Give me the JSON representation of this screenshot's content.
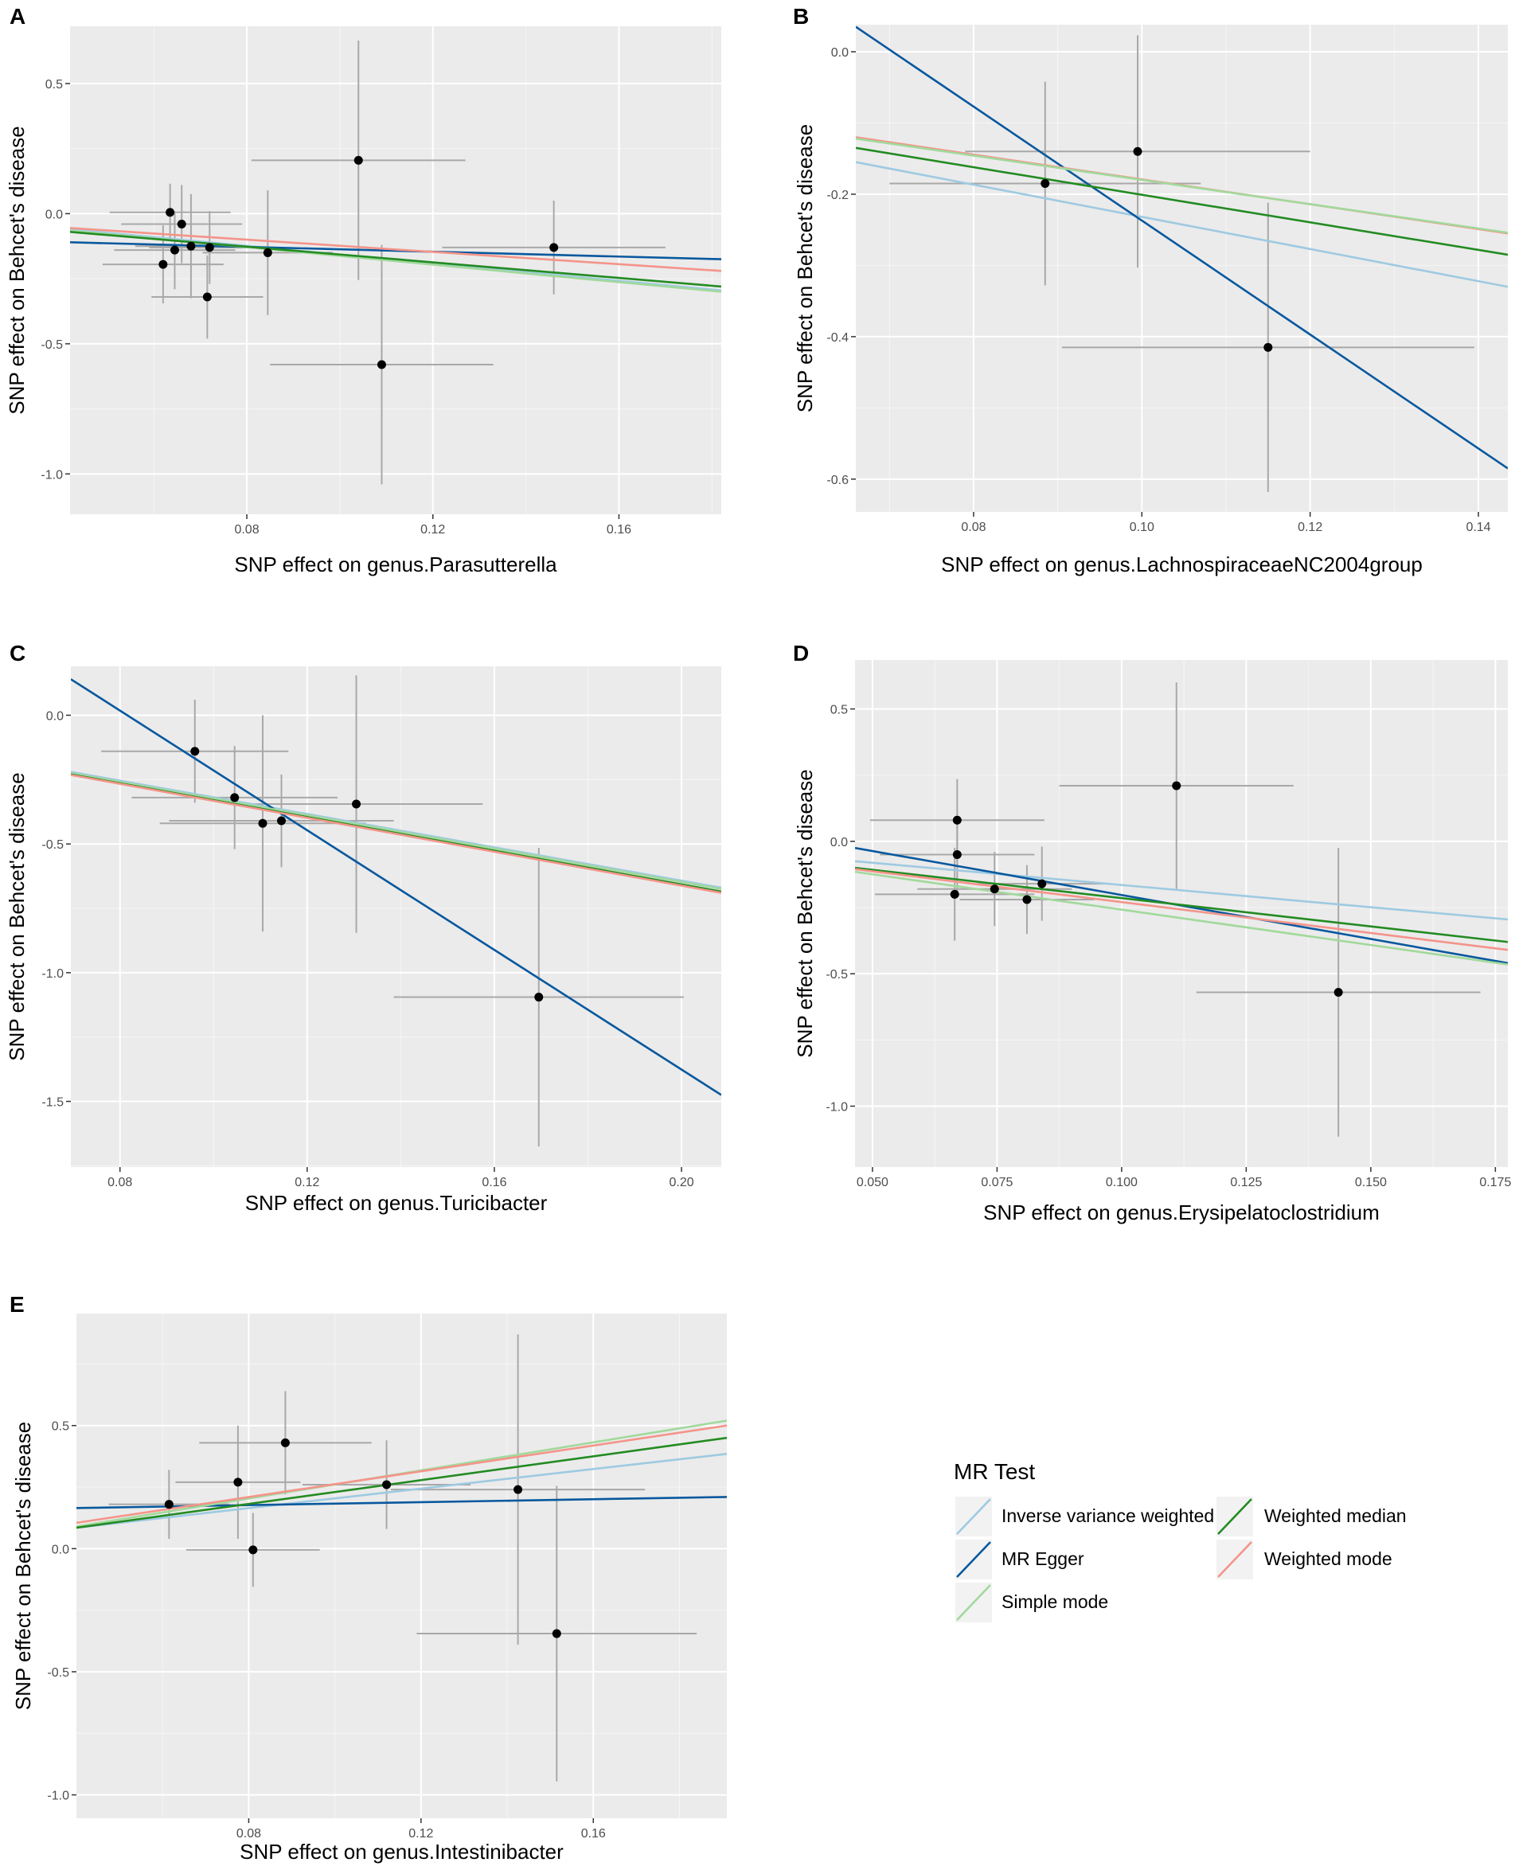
{
  "legend": {
    "title": "MR Test",
    "entries": [
      {
        "method": "ivw",
        "label": "Inverse variance weighted",
        "color": "#9ecae1"
      },
      {
        "method": "egger",
        "label": "MR Egger",
        "color": "#08589e"
      },
      {
        "method": "simple",
        "label": "Simple mode",
        "color": "#a1d99b"
      },
      {
        "method": "wmedian",
        "label": "Weighted median",
        "color": "#238b22"
      },
      {
        "method": "wmode",
        "label": "Weighted mode",
        "color": "#f4948a"
      }
    ]
  },
  "chart_data": [
    {
      "type": "scatter",
      "panel": "A",
      "title": "",
      "xlabel": "SNP effect on genus.Parasutterella",
      "ylabel": "SNP effect on Behcet's disease",
      "xlim": [
        0.042,
        0.182
      ],
      "ylim": [
        -1.155,
        0.72
      ],
      "xticks": [
        0.08,
        0.12,
        0.16
      ],
      "xtick_labels": [
        "0.08",
        "0.12",
        "0.16"
      ],
      "yticks": [
        0.5,
        0.0,
        -0.5,
        -1.0
      ],
      "ytick_labels": [
        "0.5",
        "0.0",
        "-0.5",
        "-1.0"
      ],
      "points": [
        {
          "x": 0.0635,
          "y": 0.005,
          "xerr": 0.013,
          "yerr": 0.11
        },
        {
          "x": 0.066,
          "y": -0.04,
          "xerr": 0.013,
          "yerr": 0.15
        },
        {
          "x": 0.068,
          "y": -0.125,
          "xerr": 0.012,
          "yerr": 0.2
        },
        {
          "x": 0.0645,
          "y": -0.14,
          "xerr": 0.013,
          "yerr": 0.15
        },
        {
          "x": 0.072,
          "y": -0.13,
          "xerr": 0.013,
          "yerr": 0.14
        },
        {
          "x": 0.062,
          "y": -0.195,
          "xerr": 0.013,
          "yerr": 0.15
        },
        {
          "x": 0.0715,
          "y": -0.32,
          "xerr": 0.012,
          "yerr": 0.16
        },
        {
          "x": 0.0845,
          "y": -0.15,
          "xerr": 0.014,
          "yerr": 0.24
        },
        {
          "x": 0.104,
          "y": 0.205,
          "xerr": 0.023,
          "yerr": 0.46
        },
        {
          "x": 0.109,
          "y": -0.58,
          "xerr": 0.024,
          "yerr": 0.46
        },
        {
          "x": 0.146,
          "y": -0.13,
          "xerr": 0.024,
          "yerr": 0.18
        }
      ],
      "lines": [
        {
          "method": "ivw",
          "y_at_xmin": -0.06,
          "y_at_xmax": -0.295
        },
        {
          "method": "egger",
          "y_at_xmin": -0.11,
          "y_at_xmax": -0.175
        },
        {
          "method": "simple",
          "y_at_xmin": -0.065,
          "y_at_xmax": -0.3
        },
        {
          "method": "wmedian",
          "y_at_xmin": -0.07,
          "y_at_xmax": -0.28
        },
        {
          "method": "wmode",
          "y_at_xmin": -0.055,
          "y_at_xmax": -0.22
        }
      ]
    },
    {
      "type": "scatter",
      "panel": "B",
      "title": "",
      "xlabel": "SNP effect on genus.LachnospiraceaeNC2004group",
      "ylabel": "SNP effect on Behcet's disease",
      "xlim": [
        0.066,
        0.1435
      ],
      "ylim": [
        -0.646,
        0.038
      ],
      "xticks": [
        0.08,
        0.1,
        0.12,
        0.14
      ],
      "xtick_labels": [
        "0.08",
        "0.10",
        "0.12",
        "0.14"
      ],
      "yticks": [
        0.0,
        -0.2,
        -0.4,
        -0.6
      ],
      "ytick_labels": [
        "0.0",
        "-0.2",
        "-0.4",
        "-0.6"
      ],
      "points": [
        {
          "x": 0.0885,
          "y": -0.185,
          "xerr": 0.0185,
          "yerr": 0.143
        },
        {
          "x": 0.0995,
          "y": -0.14,
          "xerr": 0.0205,
          "yerr": 0.163
        },
        {
          "x": 0.115,
          "y": -0.415,
          "xerr": 0.0245,
          "yerr": 0.203
        }
      ],
      "lines": [
        {
          "method": "ivw",
          "y_at_xmin": -0.155,
          "y_at_xmax": -0.33
        },
        {
          "method": "egger",
          "y_at_xmin": 0.035,
          "y_at_xmax": -0.585
        },
        {
          "method": "wmedian",
          "y_at_xmin": -0.135,
          "y_at_xmax": -0.285
        },
        {
          "method": "wmode",
          "y_at_xmin": -0.12,
          "y_at_xmax": -0.255
        },
        {
          "method": "simple",
          "y_at_xmin": -0.122,
          "y_at_xmax": -0.254
        }
      ]
    },
    {
      "type": "scatter",
      "panel": "C",
      "title": "",
      "xlabel": "SNP effect on genus.Turicibacter",
      "ylabel": "SNP effect on Behcet's disease",
      "xlim": [
        0.0695,
        0.2085
      ],
      "ylim": [
        -1.755,
        0.19
      ],
      "xticks": [
        0.08,
        0.12,
        0.16,
        0.2
      ],
      "xtick_labels": [
        "0.08",
        "0.12",
        "0.16",
        "0.20"
      ],
      "yticks": [
        0.0,
        -0.5,
        -1.0,
        -1.5
      ],
      "ytick_labels": [
        "0.0",
        "-0.5",
        "-1.0",
        "-1.5"
      ],
      "points": [
        {
          "x": 0.096,
          "y": -0.14,
          "xerr": 0.02,
          "yerr": 0.2
        },
        {
          "x": 0.1045,
          "y": -0.32,
          "xerr": 0.022,
          "yerr": 0.2
        },
        {
          "x": 0.1105,
          "y": -0.42,
          "xerr": 0.022,
          "yerr": 0.42
        },
        {
          "x": 0.1145,
          "y": -0.41,
          "xerr": 0.024,
          "yerr": 0.18
        },
        {
          "x": 0.1305,
          "y": -0.345,
          "xerr": 0.027,
          "yerr": 0.5
        },
        {
          "x": 0.1695,
          "y": -1.095,
          "xerr": 0.031,
          "yerr": 0.58
        }
      ],
      "lines": [
        {
          "method": "ivw",
          "y_at_xmin": -0.22,
          "y_at_xmax": -0.67
        },
        {
          "method": "egger",
          "y_at_xmin": 0.14,
          "y_at_xmax": -1.475
        },
        {
          "method": "simple",
          "y_at_xmin": -0.225,
          "y_at_xmax": -0.675
        },
        {
          "method": "wmedian",
          "y_at_xmin": -0.23,
          "y_at_xmax": -0.685
        },
        {
          "method": "wmode",
          "y_at_xmin": -0.232,
          "y_at_xmax": -0.69
        }
      ]
    },
    {
      "type": "scatter",
      "panel": "D",
      "title": "",
      "xlabel": "SNP effect on genus.Erysipelatoclostridium",
      "ylabel": "SNP effect on Behcet's disease",
      "xlim": [
        0.0465,
        0.1775
      ],
      "ylim": [
        -1.23,
        0.685
      ],
      "xticks": [
        0.05,
        0.075,
        0.1,
        0.125,
        0.15,
        0.175
      ],
      "xtick_labels": [
        "0.050",
        "0.075",
        "0.100",
        "0.125",
        "0.150",
        "0.175"
      ],
      "yticks": [
        0.5,
        0.0,
        -0.5,
        -1.0
      ],
      "ytick_labels": [
        "0.5",
        "0.0",
        "-0.5",
        "-1.0"
      ],
      "points": [
        {
          "x": 0.067,
          "y": 0.08,
          "xerr": 0.0175,
          "yerr": 0.155
        },
        {
          "x": 0.067,
          "y": -0.05,
          "xerr": 0.0155,
          "yerr": 0.155
        },
        {
          "x": 0.0665,
          "y": -0.2,
          "xerr": 0.016,
          "yerr": 0.175
        },
        {
          "x": 0.0745,
          "y": -0.18,
          "xerr": 0.0155,
          "yerr": 0.14
        },
        {
          "x": 0.081,
          "y": -0.22,
          "xerr": 0.0135,
          "yerr": 0.13
        },
        {
          "x": 0.084,
          "y": -0.16,
          "xerr": 0.013,
          "yerr": 0.14
        },
        {
          "x": 0.111,
          "y": 0.21,
          "xerr": 0.0235,
          "yerr": 0.39
        },
        {
          "x": 0.1435,
          "y": -0.57,
          "xerr": 0.0285,
          "yerr": 0.545
        }
      ],
      "lines": [
        {
          "method": "ivw",
          "y_at_xmin": -0.075,
          "y_at_xmax": -0.295
        },
        {
          "method": "egger",
          "y_at_xmin": -0.025,
          "y_at_xmax": -0.46
        },
        {
          "method": "simple",
          "y_at_xmin": -0.115,
          "y_at_xmax": -0.465
        },
        {
          "method": "wmedian",
          "y_at_xmin": -0.1,
          "y_at_xmax": -0.38
        },
        {
          "method": "wmode",
          "y_at_xmin": -0.105,
          "y_at_xmax": -0.41
        }
      ]
    },
    {
      "type": "scatter",
      "panel": "E",
      "title": "",
      "xlabel": "SNP effect on genus.Intestinibacter",
      "ylabel": "SNP effect on Behcet's disease",
      "xlim": [
        0.04,
        0.191
      ],
      "ylim": [
        -1.095,
        0.955
      ],
      "xticks": [
        0.08,
        0.12,
        0.16
      ],
      "xtick_labels": [
        "0.08",
        "0.12",
        "0.16"
      ],
      "yticks": [
        0.5,
        0.0,
        -0.5,
        -1.0
      ],
      "ytick_labels": [
        "0.5",
        "0.0",
        "-0.5",
        "-1.0"
      ],
      "points": [
        {
          "x": 0.0615,
          "y": 0.18,
          "xerr": 0.014,
          "yerr": 0.14
        },
        {
          "x": 0.0775,
          "y": 0.27,
          "xerr": 0.0145,
          "yerr": 0.23
        },
        {
          "x": 0.0885,
          "y": 0.43,
          "xerr": 0.02,
          "yerr": 0.21
        },
        {
          "x": 0.081,
          "y": -0.005,
          "xerr": 0.0155,
          "yerr": 0.15
        },
        {
          "x": 0.112,
          "y": 0.26,
          "xerr": 0.0195,
          "yerr": 0.18
        },
        {
          "x": 0.1425,
          "y": 0.24,
          "xerr": 0.0295,
          "yerr": 0.63
        },
        {
          "x": 0.1515,
          "y": -0.345,
          "xerr": 0.0325,
          "yerr": 0.6
        }
      ],
      "lines": [
        {
          "method": "ivw",
          "y_at_xmin": 0.085,
          "y_at_xmax": 0.385
        },
        {
          "method": "egger",
          "y_at_xmin": 0.165,
          "y_at_xmax": 0.21
        },
        {
          "method": "simple",
          "y_at_xmin": 0.09,
          "y_at_xmax": 0.52
        },
        {
          "method": "wmedian",
          "y_at_xmin": 0.085,
          "y_at_xmax": 0.45
        },
        {
          "method": "wmode",
          "y_at_xmin": 0.105,
          "y_at_xmax": 0.5
        }
      ]
    }
  ]
}
